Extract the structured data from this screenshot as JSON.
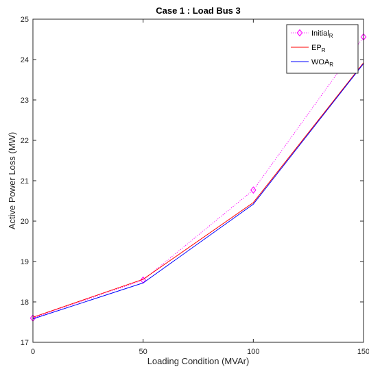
{
  "chart_data": {
    "type": "line",
    "title": "Case 1 :  Load Bus 3",
    "xlabel": "Loading Condition (MVAr)",
    "ylabel": "Active Power Loss (MW)",
    "xlim": [
      0,
      150
    ],
    "ylim": [
      17,
      25
    ],
    "x_ticks": [
      0,
      50,
      100,
      150
    ],
    "y_ticks": [
      17,
      18,
      19,
      20,
      21,
      22,
      23,
      24,
      25
    ],
    "grid": false,
    "legend_position": "top-right",
    "x": [
      0,
      50,
      100,
      150
    ],
    "series": [
      {
        "name": "Initial",
        "name_subscript": "R",
        "values": [
          17.6,
          18.54,
          20.77,
          24.56
        ],
        "color": "#ff00ff",
        "line_style": "dotted",
        "marker": "diamond"
      },
      {
        "name": "EP",
        "name_subscript": "R",
        "values": [
          17.62,
          18.56,
          20.46,
          23.92
        ],
        "color": "#ff0000",
        "line_style": "solid",
        "marker": "none"
      },
      {
        "name": "WOA",
        "name_subscript": "R",
        "values": [
          17.58,
          18.47,
          20.42,
          23.9
        ],
        "color": "#0000ff",
        "line_style": "solid",
        "marker": "none"
      }
    ]
  }
}
